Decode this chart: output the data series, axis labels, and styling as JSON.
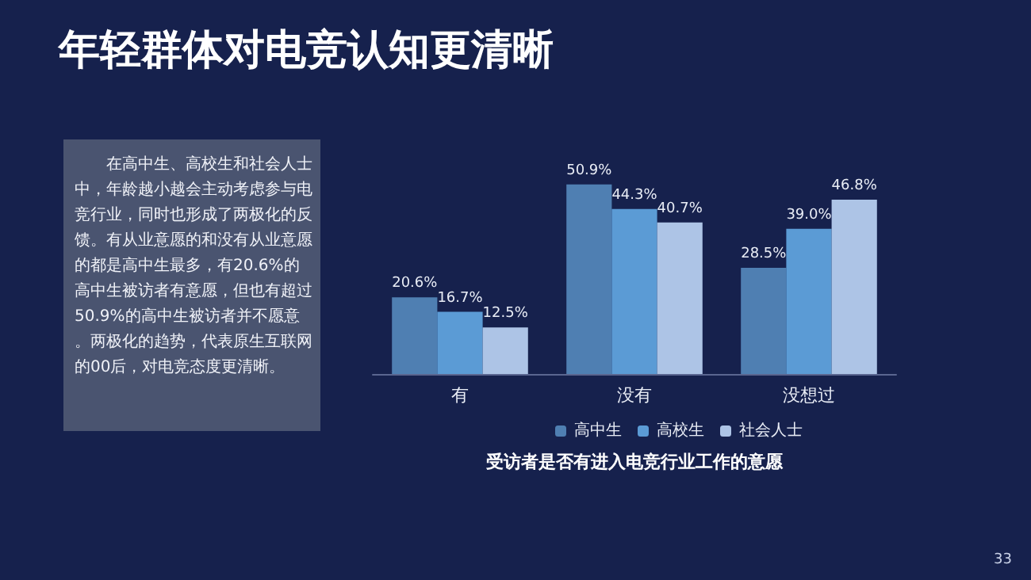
{
  "chart_data": {
    "type": "bar",
    "title": "年轻群体对电竞认知更清晰",
    "xlabel": "受访者是否有进入电竞行业工作的意愿",
    "categories": [
      "有",
      "没有",
      "没想过"
    ],
    "series": [
      {
        "name": "高中生",
        "color": "#4f7fb2",
        "values": [
          20.6,
          50.9,
          28.5
        ],
        "value_labels": [
          "20.6%",
          "50.9%",
          "28.5%"
        ]
      },
      {
        "name": "高校生",
        "color": "#5b9bd5",
        "values": [
          16.7,
          44.3,
          39.0
        ],
        "value_labels": [
          "16.7%",
          "44.3%",
          "39.0%"
        ]
      },
      {
        "name": "社会人士",
        "color": "#adc4e6",
        "values": [
          12.5,
          40.7,
          46.8
        ],
        "value_labels": [
          "12.5%",
          "40.7%",
          "46.8%"
        ]
      }
    ],
    "legend": "bottom",
    "annotations": [
      "在高中生、高校生和社会人士中，年龄越小越会主动考虑参与电竞行业，同时也形成了两极化的反馈。有从业意愿的和没有从业意愿的都是高中生最多，有20.6%的高中生被访者有意愿，但也有超过50.9%的高中生被访者并不愿意。两极化的趋势，代表原生互联网的00后，对电竞态度更清晰。",
      "33"
    ]
  }
}
